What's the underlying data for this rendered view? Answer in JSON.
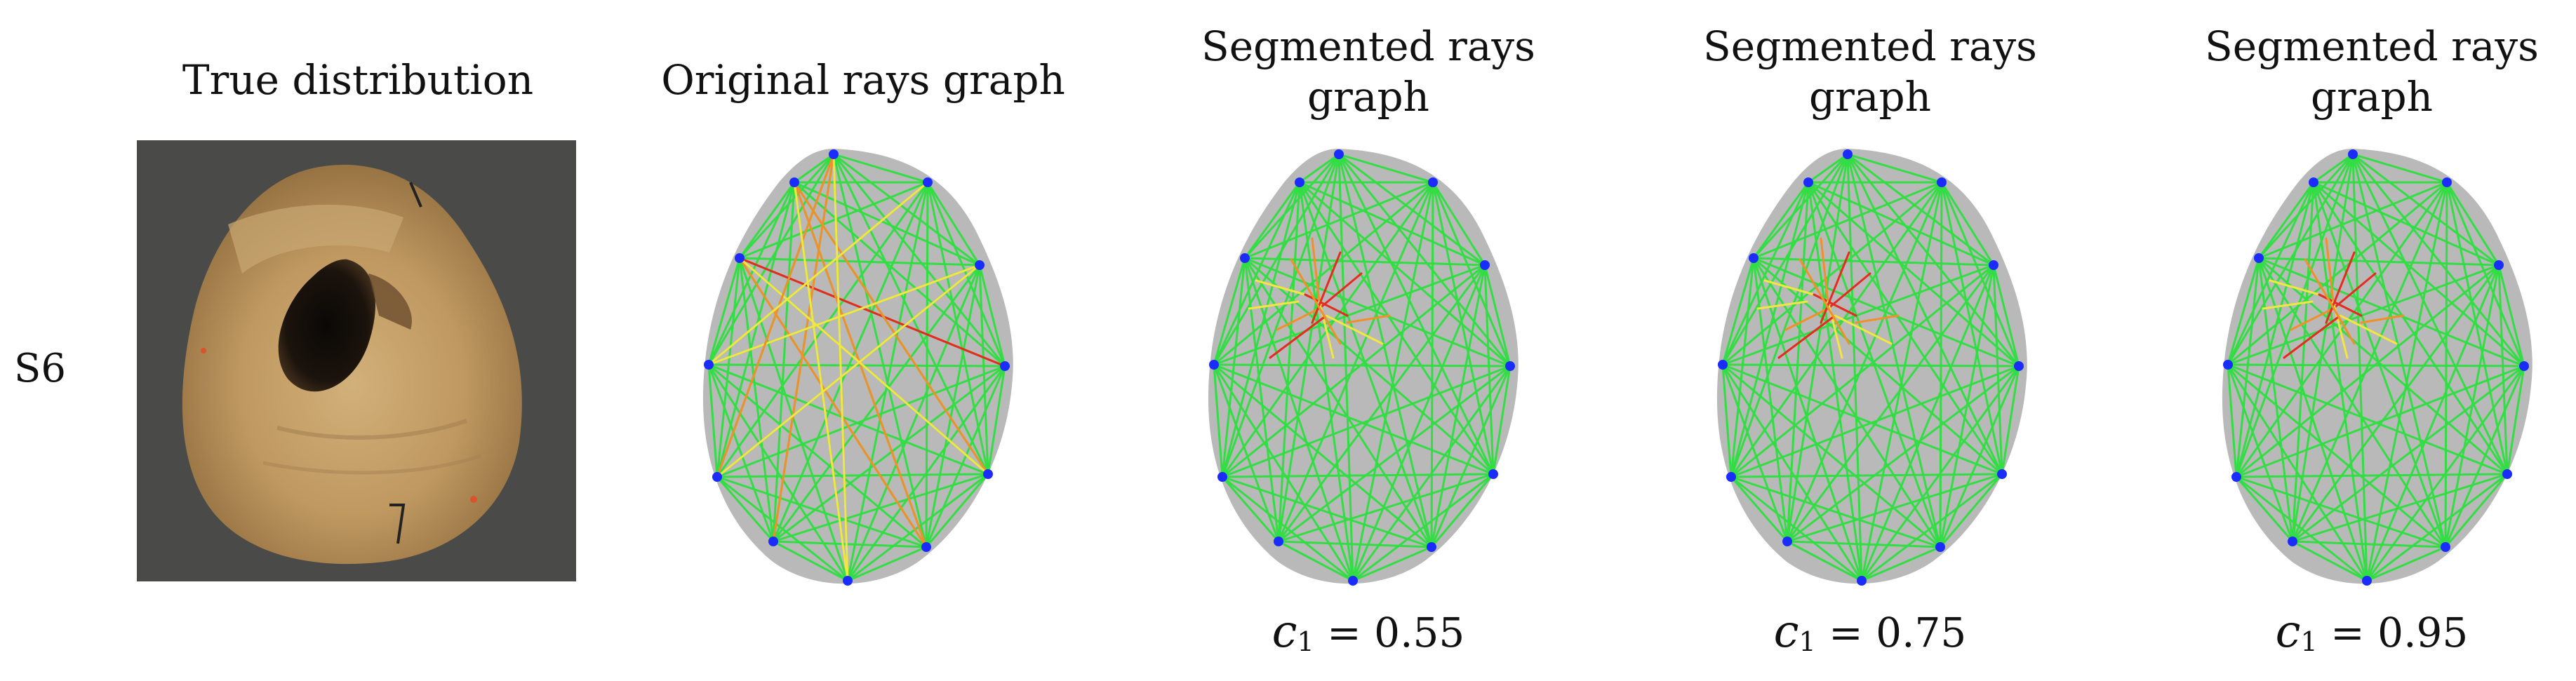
{
  "row_label": "S6",
  "columns": [
    {
      "title_lines": [
        "True distribution"
      ],
      "kind": "photo"
    },
    {
      "title_lines": [
        "Original rays graph"
      ],
      "kind": "graph",
      "variant": "original"
    },
    {
      "title_lines": [
        "Segmented rays",
        "graph"
      ],
      "kind": "graph",
      "variant": "seg",
      "param": {
        "symbol": "c",
        "sub": "1",
        "value": "= 0.55"
      }
    },
    {
      "title_lines": [
        "Segmented rays",
        "graph"
      ],
      "kind": "graph",
      "variant": "seg",
      "param": {
        "symbol": "c",
        "sub": "1",
        "value": "= 0.75"
      }
    },
    {
      "title_lines": [
        "Segmented rays",
        "graph"
      ],
      "kind": "graph",
      "variant": "seg",
      "param": {
        "symbol": "c",
        "sub": "1",
        "value": "= 0.95"
      }
    }
  ],
  "colors": {
    "ray_normal": "#33dd44",
    "ray_mid": "#f2e640",
    "ray_warn": "#f0902a",
    "ray_defect": "#e52a1f",
    "sensor": "#1a2cff",
    "cross_section": "#b9b9b9",
    "photo_bg": "#4a4a48"
  }
}
